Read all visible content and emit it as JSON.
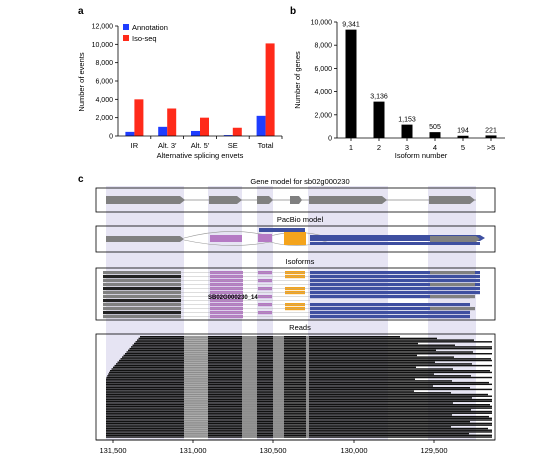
{
  "panels": {
    "a": "a",
    "b": "b",
    "c": "c"
  },
  "chart_data": [
    {
      "type": "bar",
      "ylabel": "Number of events",
      "xlabel": "Alternative splicing envets",
      "categories": [
        "IR",
        "Alt. 3′",
        "Alt. 5′",
        "SE",
        "Total"
      ],
      "y_ticks": [
        "0",
        "2,000",
        "4,000",
        "6,000",
        "8,000",
        "10,000",
        "12,000"
      ],
      "ylim": [
        0,
        12000
      ],
      "legend_position": "top-left",
      "series": [
        {
          "name": "Annotation",
          "color": "#1f3dff",
          "values": [
            450,
            1000,
            550,
            100,
            2200
          ]
        },
        {
          "name": "Iso-seq",
          "color": "#ff2a1a",
          "values": [
            4000,
            3000,
            2000,
            900,
            10100
          ]
        }
      ]
    },
    {
      "type": "bar",
      "ylabel": "Number of genes",
      "xlabel": "Isoform number",
      "categories": [
        "1",
        "2",
        "3",
        "4",
        "5",
        ">5"
      ],
      "y_ticks": [
        "0",
        "2,000",
        "4,000",
        "6,000",
        "8,000",
        "10,000"
      ],
      "ylim": [
        0,
        10000
      ],
      "color": "#000000",
      "values": [
        9341,
        3136,
        1153,
        505,
        194,
        221
      ],
      "data_labels": [
        "9,341",
        "3,136",
        "1,153",
        "505",
        "194",
        "221"
      ]
    }
  ],
  "panel_c": {
    "gene_model_title": "Gene model for sb02g000230",
    "pacbio_title": "PacBio model",
    "isoforms_title": "Isoforms",
    "isoform_label": "SB02G000230_14",
    "reads_title": "Reads",
    "axis_labels": [
      "131,500",
      "131,000",
      "130,500",
      "130,000",
      "129,500"
    ],
    "colors": {
      "exon": "#808080",
      "highlight": "#e6e4f3",
      "purple": "#b57ac4",
      "orange": "#f4a41c",
      "blue": "#3e4fa0",
      "read": "#111111"
    }
  }
}
